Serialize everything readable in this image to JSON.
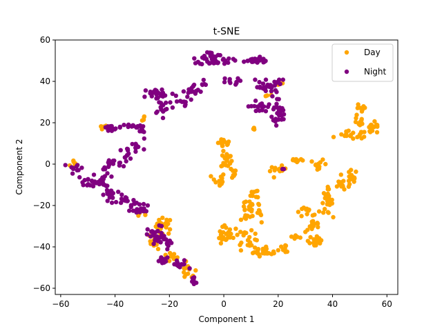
{
  "chart_data": {
    "type": "scatter",
    "title": "t-SNE",
    "xlabel": "Component 1",
    "ylabel": "Component 2",
    "xlim": [
      -62,
      64
    ],
    "ylim": [
      -63,
      60
    ],
    "xticks": [
      -60,
      -40,
      -20,
      0,
      20,
      40,
      60
    ],
    "yticks": [
      -60,
      -40,
      -20,
      0,
      20,
      40,
      60
    ],
    "grid": false,
    "legend_position": "top-right",
    "series": [
      {
        "name": "Day",
        "color": "#FFA500",
        "clusters": [
          {
            "cx": -55,
            "cy": 0,
            "sx": 0.8,
            "sy": 1.2,
            "n": 6
          },
          {
            "cx": -44,
            "cy": 18,
            "sx": 1.0,
            "sy": 0.8,
            "n": 6
          },
          {
            "cx": -30,
            "cy": 22,
            "sx": 0.6,
            "sy": 0.8,
            "n": 4
          },
          {
            "cx": -22,
            "cy": -30,
            "sx": 1.5,
            "sy": 2.0,
            "n": 25
          },
          {
            "cx": -25,
            "cy": -37,
            "sx": 1.2,
            "sy": 2.0,
            "n": 15
          },
          {
            "cx": -20,
            "cy": -45,
            "sx": 2.0,
            "sy": 1.2,
            "n": 10
          },
          {
            "cx": -13,
            "cy": -52,
            "sx": 1.5,
            "sy": 2.0,
            "n": 12
          },
          {
            "cx": -31,
            "cy": -24,
            "sx": 1.0,
            "sy": 1.0,
            "n": 5
          },
          {
            "cx": 0,
            "cy": 10,
            "sx": 1.2,
            "sy": 1.0,
            "n": 15
          },
          {
            "cx": 1,
            "cy": 2,
            "sx": 1.0,
            "sy": 2.0,
            "n": 18
          },
          {
            "cx": -2,
            "cy": -8,
            "sx": 1.2,
            "sy": 2.0,
            "n": 15
          },
          {
            "cx": 3,
            "cy": -4,
            "sx": 1.0,
            "sy": 1.5,
            "n": 8
          },
          {
            "cx": 10,
            "cy": -20,
            "sx": 2.5,
            "sy": 1.8,
            "n": 15
          },
          {
            "cx": 12,
            "cy": -14,
            "sx": 1.0,
            "sy": 1.5,
            "n": 8
          },
          {
            "cx": 8,
            "cy": -25,
            "sx": 1.5,
            "sy": 1.5,
            "n": 10
          },
          {
            "cx": 13,
            "cy": -24,
            "sx": 1.0,
            "sy": 2.0,
            "n": 8
          },
          {
            "cx": 0,
            "cy": -31,
            "sx": 1.0,
            "sy": 1.5,
            "n": 8
          },
          {
            "cx": 1,
            "cy": -36,
            "sx": 2.0,
            "sy": 1.0,
            "n": 15
          },
          {
            "cx": 8,
            "cy": -33,
            "sx": 2.0,
            "sy": 1.5,
            "n": 10
          },
          {
            "cx": 9,
            "cy": -38,
            "sx": 1.5,
            "sy": 1.5,
            "n": 10
          },
          {
            "cx": 15,
            "cy": -42,
            "sx": 3.0,
            "sy": 1.2,
            "n": 28
          },
          {
            "cx": 23,
            "cy": -41,
            "sx": 0.8,
            "sy": 1.0,
            "n": 5
          },
          {
            "cx": 20,
            "cy": -3,
            "sx": 1.5,
            "sy": 1.0,
            "n": 12
          },
          {
            "cx": 27,
            "cy": 2,
            "sx": 1.5,
            "sy": 0.8,
            "n": 8
          },
          {
            "cx": 35,
            "cy": 0,
            "sx": 1.5,
            "sy": 1.0,
            "n": 12
          },
          {
            "cx": 31,
            "cy": -23,
            "sx": 2.5,
            "sy": 1.0,
            "n": 12
          },
          {
            "cx": 38,
            "cy": -18,
            "sx": 1.0,
            "sy": 3.0,
            "n": 25
          },
          {
            "cx": 33,
            "cy": -30,
            "sx": 1.5,
            "sy": 1.5,
            "n": 12
          },
          {
            "cx": 34,
            "cy": -37,
            "sx": 1.5,
            "sy": 2.0,
            "n": 22
          },
          {
            "cx": 27,
            "cy": -35,
            "sx": 1.0,
            "sy": 1.0,
            "n": 5
          },
          {
            "cx": 44,
            "cy": -10,
            "sx": 2.0,
            "sy": 1.5,
            "n": 15
          },
          {
            "cx": 47,
            "cy": -6,
            "sx": 1.0,
            "sy": 1.5,
            "n": 12
          },
          {
            "cx": 50,
            "cy": 26,
            "sx": 1.2,
            "sy": 1.5,
            "n": 10
          },
          {
            "cx": 50,
            "cy": 20,
            "sx": 1.0,
            "sy": 1.5,
            "n": 10
          },
          {
            "cx": 47,
            "cy": 14,
            "sx": 2.5,
            "sy": 1.0,
            "n": 18
          },
          {
            "cx": 55,
            "cy": 17,
            "sx": 1.5,
            "sy": 1.5,
            "n": 18
          },
          {
            "cx": 11,
            "cy": 17,
            "sx": 0.6,
            "sy": 0.4,
            "n": 3
          },
          {
            "cx": 16,
            "cy": 33,
            "sx": 0.6,
            "sy": 0.6,
            "n": 3
          },
          {
            "cx": 21,
            "cy": 39,
            "sx": 0.6,
            "sy": 0.6,
            "n": 3
          }
        ]
      },
      {
        "name": "Night",
        "color": "#800080",
        "clusters": [
          {
            "cx": -54,
            "cy": -2,
            "sx": 1.5,
            "sy": 1.5,
            "n": 10
          },
          {
            "cx": -50,
            "cy": -8,
            "sx": 2.0,
            "sy": 1.5,
            "n": 15
          },
          {
            "cx": -44,
            "cy": -8,
            "sx": 2.0,
            "sy": 1.5,
            "n": 15
          },
          {
            "cx": -41,
            "cy": 0,
            "sx": 2.0,
            "sy": 1.2,
            "n": 15
          },
          {
            "cx": -36,
            "cy": 5,
            "sx": 1.5,
            "sy": 1.5,
            "n": 12
          },
          {
            "cx": -42,
            "cy": -15,
            "sx": 1.0,
            "sy": 2.0,
            "n": 20
          },
          {
            "cx": -37,
            "cy": -17,
            "sx": 1.0,
            "sy": 1.5,
            "n": 8
          },
          {
            "cx": -33,
            "cy": -20,
            "sx": 1.5,
            "sy": 1.5,
            "n": 15
          },
          {
            "cx": -30,
            "cy": -22,
            "sx": 1.0,
            "sy": 1.0,
            "n": 8
          },
          {
            "cx": -42,
            "cy": 17,
            "sx": 1.5,
            "sy": 0.8,
            "n": 14
          },
          {
            "cx": -34,
            "cy": 18,
            "sx": 2.0,
            "sy": 0.8,
            "n": 14
          },
          {
            "cx": -30,
            "cy": 16,
            "sx": 1.0,
            "sy": 2.0,
            "n": 8
          },
          {
            "cx": -32,
            "cy": 8,
            "sx": 1.5,
            "sy": 2.0,
            "n": 10
          },
          {
            "cx": -24,
            "cy": 34,
            "sx": 3.0,
            "sy": 1.5,
            "n": 25
          },
          {
            "cx": -22,
            "cy": 28,
            "sx": 2.0,
            "sy": 2.0,
            "n": 15
          },
          {
            "cx": -15,
            "cy": 30,
            "sx": 2.0,
            "sy": 1.5,
            "n": 8
          },
          {
            "cx": -11,
            "cy": 35,
            "sx": 2.0,
            "sy": 1.5,
            "n": 15
          },
          {
            "cx": -8,
            "cy": 38,
            "sx": 1.0,
            "sy": 1.5,
            "n": 6
          },
          {
            "cx": -3,
            "cy": 50,
            "sx": 3.0,
            "sy": 1.0,
            "n": 30
          },
          {
            "cx": -5,
            "cy": 53,
            "sx": 2.0,
            "sy": 0.8,
            "n": 15
          },
          {
            "cx": 11,
            "cy": 50,
            "sx": 3.5,
            "sy": 0.8,
            "n": 22
          },
          {
            "cx": 2,
            "cy": 40,
            "sx": 2.0,
            "sy": 0.8,
            "n": 10
          },
          {
            "cx": 14,
            "cy": 37,
            "sx": 2.0,
            "sy": 2.5,
            "n": 15
          },
          {
            "cx": 18,
            "cy": 36,
            "sx": 1.5,
            "sy": 2.5,
            "n": 12
          },
          {
            "cx": 20,
            "cy": 40,
            "sx": 0.8,
            "sy": 0.8,
            "n": 5
          },
          {
            "cx": 12,
            "cy": 28,
            "sx": 1.5,
            "sy": 1.5,
            "n": 12
          },
          {
            "cx": 18,
            "cy": 27,
            "sx": 2.0,
            "sy": 1.5,
            "n": 15
          },
          {
            "cx": 20,
            "cy": 22,
            "sx": 1.5,
            "sy": 1.5,
            "n": 12
          },
          {
            "cx": -25,
            "cy": -35,
            "sx": 1.5,
            "sy": 2.5,
            "n": 25
          },
          {
            "cx": -21,
            "cy": -38,
            "sx": 1.0,
            "sy": 2.0,
            "n": 12
          },
          {
            "cx": -22,
            "cy": -47,
            "sx": 1.5,
            "sy": 1.0,
            "n": 12
          },
          {
            "cx": -16,
            "cy": -49,
            "sx": 1.5,
            "sy": 1.5,
            "n": 12
          },
          {
            "cx": -11,
            "cy": -56,
            "sx": 0.8,
            "sy": 1.2,
            "n": 10
          },
          {
            "cx": 22,
            "cy": -2,
            "sx": 0.4,
            "sy": 0.4,
            "n": 2
          }
        ]
      }
    ]
  }
}
